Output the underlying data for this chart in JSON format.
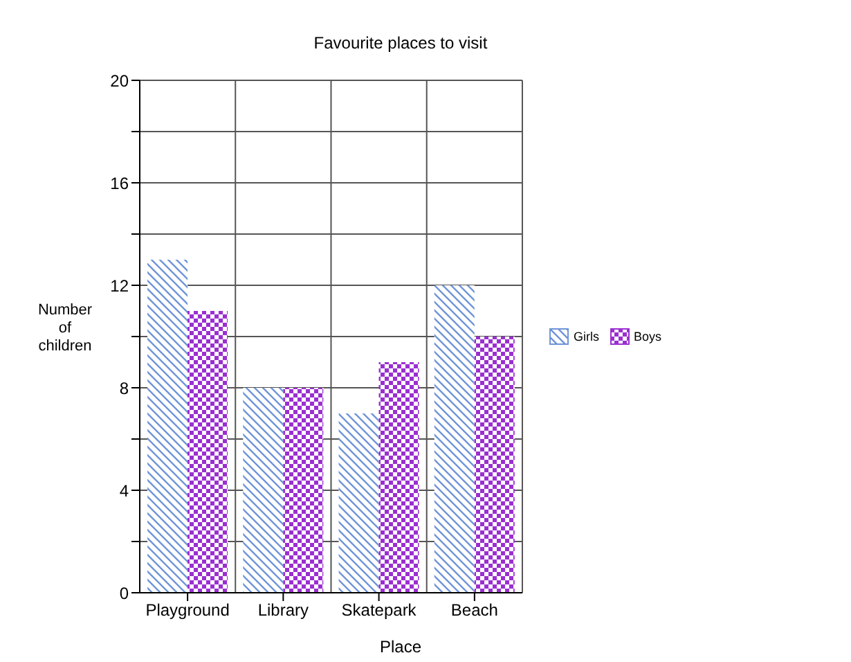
{
  "chart_data": {
    "type": "bar",
    "title": "Favourite places to visit",
    "xlabel": "Place",
    "ylabel": "Number of children",
    "categories": [
      "Playground",
      "Library",
      "Skatepark",
      "Beach"
    ],
    "series": [
      {
        "name": "Girls",
        "color": "#6f94d8",
        "values": [
          13,
          8,
          7,
          12
        ]
      },
      {
        "name": "Boys",
        "color": "#9b2fd0",
        "values": [
          11,
          8,
          9,
          10
        ]
      }
    ],
    "ylim": [
      0,
      20
    ],
    "yticks": [
      0,
      {
        "value": 2,
        "label": null
      },
      4,
      {
        "value": 6,
        "label": null
      },
      8,
      {
        "value": 10,
        "label": null
      },
      12,
      {
        "value": 14,
        "label": null
      },
      16,
      {
        "value": 18,
        "label": null
      },
      20
    ],
    "grid": true,
    "legend": "right"
  }
}
